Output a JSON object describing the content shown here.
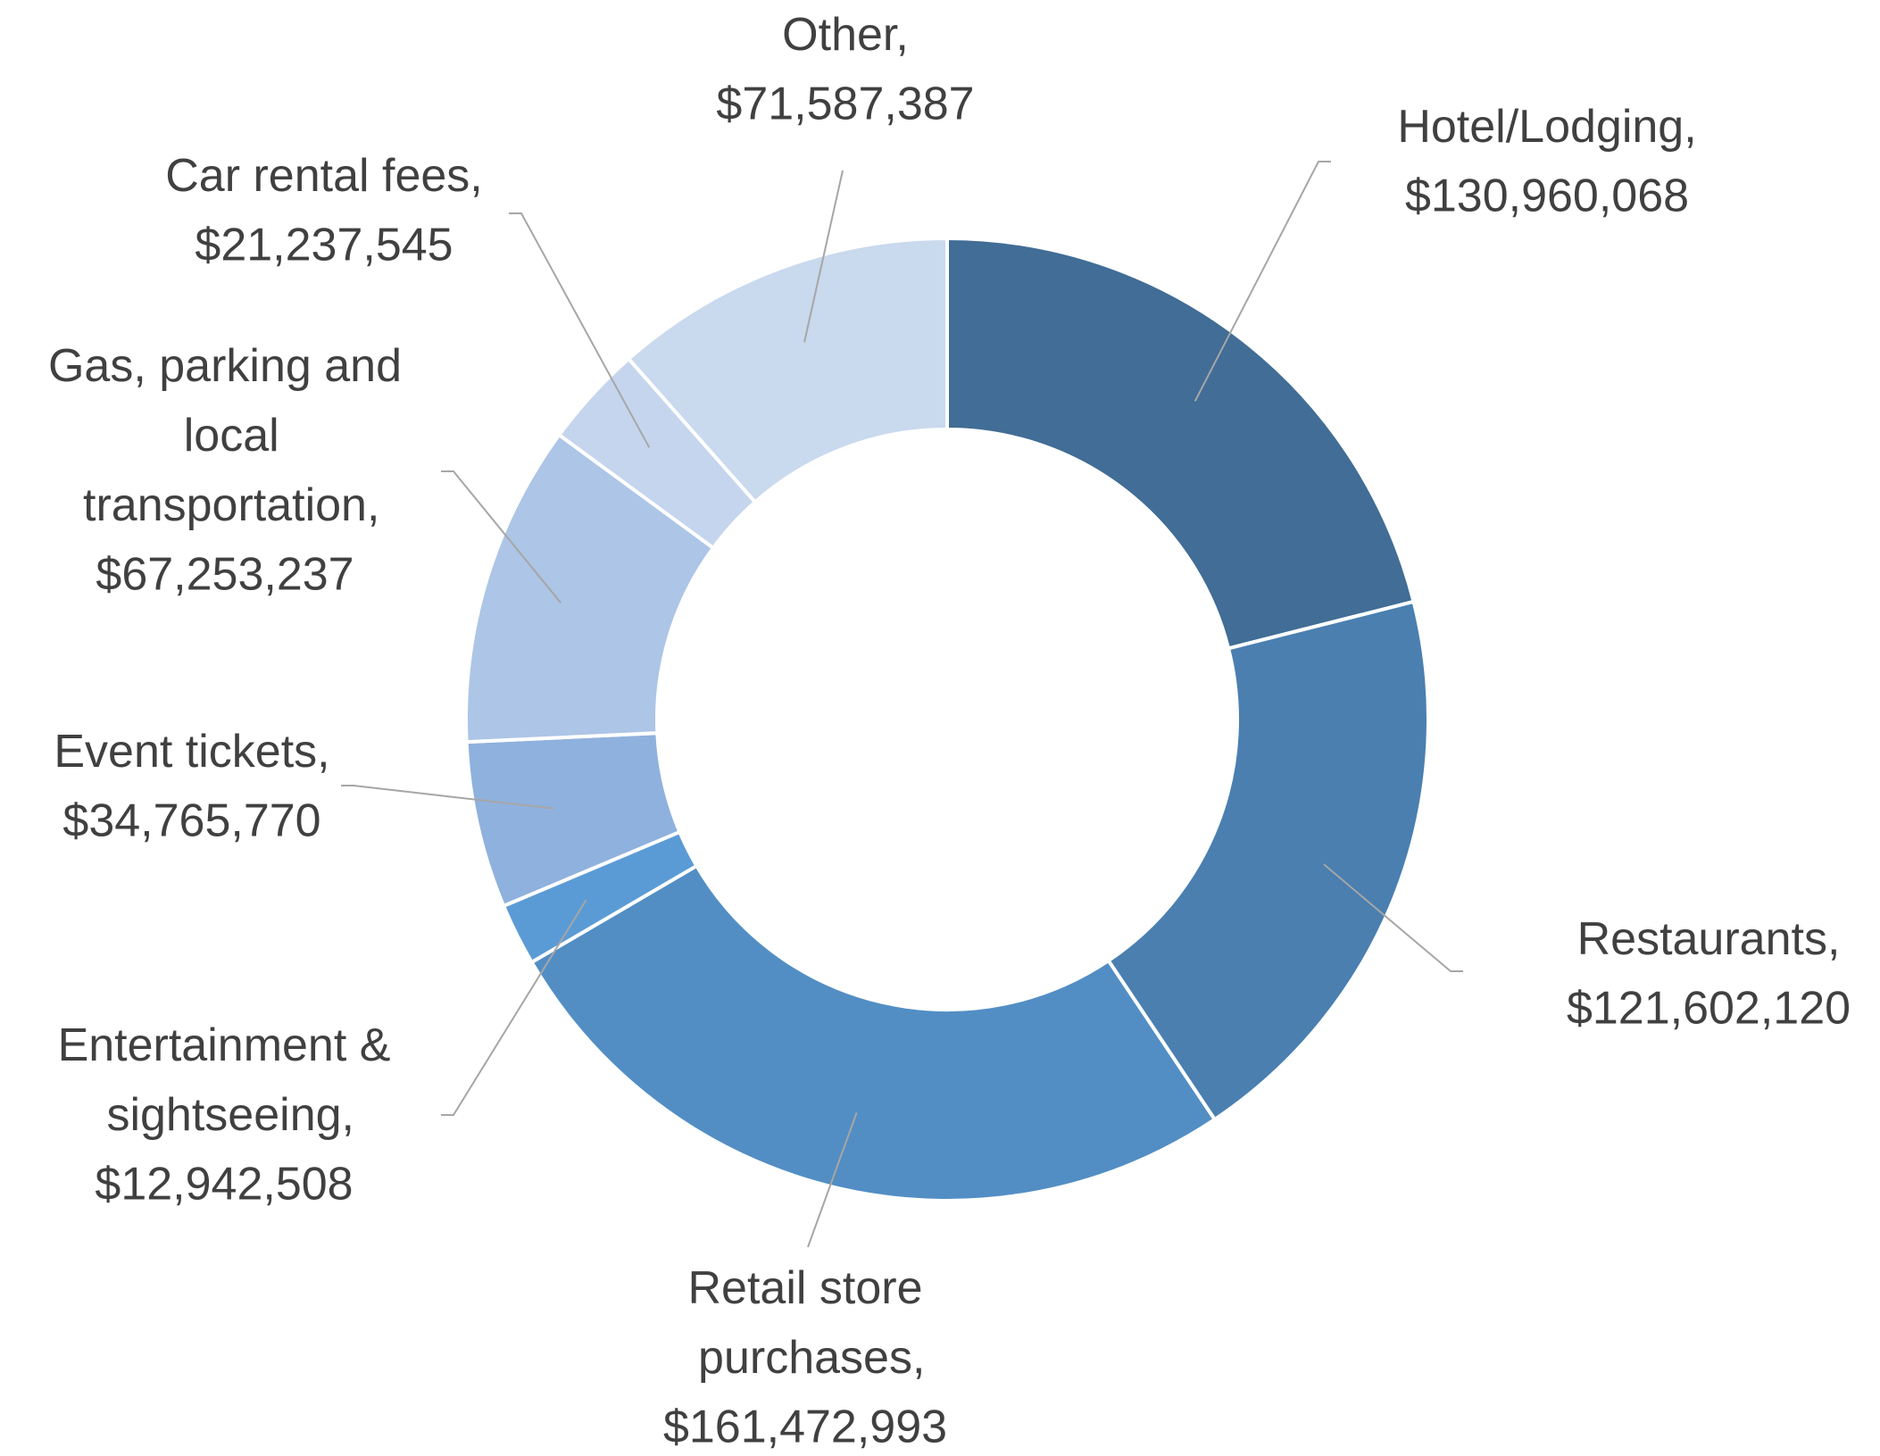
{
  "chart_data": {
    "type": "donut",
    "categories": [
      "Hotel/Lodging,",
      "Restaurants,",
      "Retail store purchases,",
      "Entertainment & sightseeing,",
      "Event tickets,",
      "Gas, parking and local transportation,",
      "Car rental fees,",
      "Other,"
    ],
    "values": [
      130960068,
      121602120,
      161472993,
      12942508,
      34765770,
      67253237,
      21237545,
      71587387
    ],
    "value_labels": [
      "$130,960,068",
      "$121,602,120",
      "$161,472,993",
      "$12,942,508",
      "$34,765,770",
      "$67,253,237",
      "$21,237,545",
      "$71,587,387"
    ],
    "colors": [
      "#416d96",
      "#4a7fb0",
      "#528ec4",
      "#5b9bd5",
      "#8fb1dd",
      "#adc5e6",
      "#c5d5ed",
      "#c9d9ee"
    ]
  }
}
